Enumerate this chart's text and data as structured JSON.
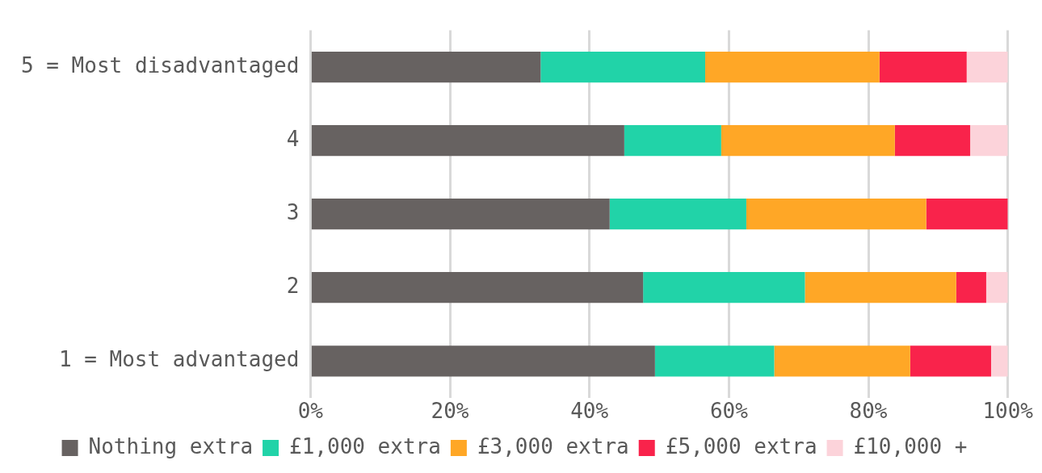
{
  "chart_data": {
    "type": "bar",
    "orientation": "horizontal",
    "stacked": true,
    "categories": [
      "5 = Most disadvantaged",
      "4",
      "3",
      "2",
      "1 = Most advantaged"
    ],
    "series": [
      {
        "name": "Nothing extra",
        "color": "#676261",
        "values": [
          33,
          45,
          42.9,
          47.7,
          49.4
        ]
      },
      {
        "name": "£1,000 extra",
        "color": "#21d3a8",
        "values": [
          23.6,
          13.9,
          19.6,
          23.2,
          17.1
        ]
      },
      {
        "name": "£3,000 extra",
        "color": "#ffa726",
        "values": [
          25,
          24.9,
          25.8,
          21.7,
          19.5
        ]
      },
      {
        "name": "£5,000 extra",
        "color": "#f9234b",
        "values": [
          12.5,
          10.8,
          11.7,
          4.3,
          11.6
        ]
      },
      {
        "name": "£10,000 +",
        "color": "#fcd3da",
        "values": [
          5.9,
          5.4,
          0,
          3.1,
          2.4
        ]
      }
    ],
    "xlim": [
      0,
      100
    ],
    "xticks": [
      {
        "value": 0,
        "label": "0%"
      },
      {
        "value": 20,
        "label": "20%"
      },
      {
        "value": 40,
        "label": "40%"
      },
      {
        "value": 60,
        "label": "60%"
      },
      {
        "value": 80,
        "label": "80%"
      },
      {
        "value": 100,
        "label": "100%"
      }
    ],
    "grid": "x",
    "legend": "bottom"
  }
}
